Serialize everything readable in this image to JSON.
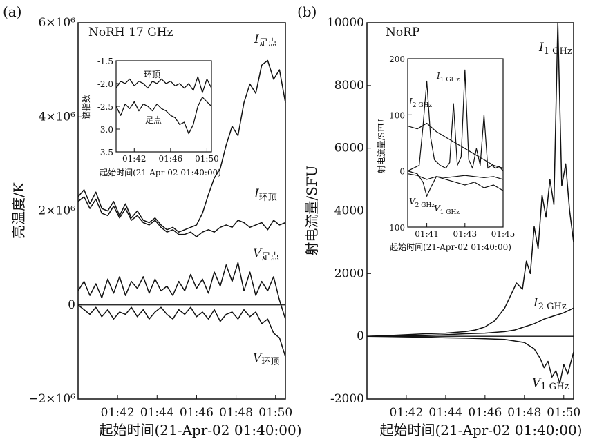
{
  "colors": {
    "line": "#111111",
    "background": "#ffffff"
  },
  "chart_data": [
    {
      "panel": "(a)",
      "type": "line",
      "instrument": "NoRH 17 GHz",
      "xlabel": "起始时间(21-Apr-02 01:40:00)",
      "ylabel": "亮温度/K",
      "xlim": [
        0,
        10.5
      ],
      "ylim": [
        -2000000,
        6000000
      ],
      "x_tick_labels": [
        "01:42",
        "01:44",
        "01:46",
        "01:48",
        "01:50"
      ],
      "y_tick_labels": [
        "6×10⁶",
        "4×10⁶",
        "2×10⁶",
        "0",
        "−2×10⁶"
      ],
      "series": [
        {
          "name": "I足点",
          "label_main": "I",
          "label_sub": "足点",
          "x": [
            0,
            0.3,
            0.6,
            0.9,
            1.2,
            1.5,
            1.8,
            2.1,
            2.4,
            2.7,
            3.0,
            3.3,
            3.6,
            3.9,
            4.2,
            4.5,
            4.8,
            5.1,
            5.4,
            5.7,
            6.0,
            6.3,
            6.6,
            6.9,
            7.2,
            7.5,
            7.8,
            8.1,
            8.4,
            8.7,
            9.0,
            9.3,
            9.6,
            9.9,
            10.2,
            10.5
          ],
          "y": [
            2300000,
            2450000,
            2150000,
            2400000,
            2050000,
            2000000,
            2200000,
            1900000,
            2150000,
            1850000,
            2000000,
            1800000,
            1750000,
            1850000,
            1700000,
            1600000,
            1650000,
            1550000,
            1600000,
            1650000,
            1700000,
            1950000,
            2350000,
            2700000,
            2900000,
            3400000,
            3800000,
            3600000,
            4300000,
            4700000,
            4500000,
            5100000,
            5200000,
            4800000,
            5000000,
            4300000
          ]
        },
        {
          "name": "I环顶",
          "label_main": "I",
          "label_sub": "环顶",
          "x": [
            0,
            0.3,
            0.6,
            0.9,
            1.2,
            1.5,
            1.8,
            2.1,
            2.4,
            2.7,
            3.0,
            3.3,
            3.6,
            3.9,
            4.2,
            4.5,
            4.8,
            5.1,
            5.4,
            5.7,
            6.0,
            6.3,
            6.6,
            6.9,
            7.2,
            7.5,
            7.8,
            8.1,
            8.4,
            8.7,
            9.0,
            9.3,
            9.6,
            9.9,
            10.2,
            10.5
          ],
          "y": [
            2200000,
            2300000,
            2050000,
            2250000,
            1950000,
            1900000,
            2100000,
            1850000,
            2050000,
            1800000,
            1900000,
            1750000,
            1700000,
            1800000,
            1650000,
            1550000,
            1600000,
            1500000,
            1500000,
            1550000,
            1450000,
            1550000,
            1600000,
            1550000,
            1650000,
            1700000,
            1650000,
            1800000,
            1750000,
            1650000,
            1700000,
            1750000,
            1600000,
            1800000,
            1700000,
            1750000
          ]
        },
        {
          "name": "V足点",
          "label_main": "V",
          "label_sub": "足点",
          "x": [
            0,
            0.3,
            0.6,
            0.9,
            1.2,
            1.5,
            1.8,
            2.1,
            2.4,
            2.7,
            3.0,
            3.3,
            3.6,
            3.9,
            4.2,
            4.5,
            4.8,
            5.1,
            5.4,
            5.7,
            6.0,
            6.3,
            6.6,
            6.9,
            7.2,
            7.5,
            7.8,
            8.1,
            8.4,
            8.7,
            9.0,
            9.3,
            9.6,
            9.9,
            10.2,
            10.5
          ],
          "y": [
            300000,
            500000,
            200000,
            450000,
            150000,
            550000,
            250000,
            600000,
            200000,
            500000,
            350000,
            600000,
            250000,
            550000,
            300000,
            400000,
            200000,
            500000,
            300000,
            650000,
            350000,
            550000,
            250000,
            700000,
            400000,
            850000,
            500000,
            900000,
            300000,
            700000,
            200000,
            500000,
            300000,
            600000,
            100000,
            -300000
          ]
        },
        {
          "name": "V环顶",
          "label_main": "V",
          "label_sub": "环顶",
          "x": [
            0,
            0.3,
            0.6,
            0.9,
            1.2,
            1.5,
            1.8,
            2.1,
            2.4,
            2.7,
            3.0,
            3.3,
            3.6,
            3.9,
            4.2,
            4.5,
            4.8,
            5.1,
            5.4,
            5.7,
            6.0,
            6.3,
            6.6,
            6.9,
            7.2,
            7.5,
            7.8,
            8.1,
            8.4,
            8.7,
            9.0,
            9.3,
            9.6,
            9.9,
            10.2,
            10.5
          ],
          "y": [
            0,
            -100000,
            -200000,
            -50000,
            -250000,
            -100000,
            -300000,
            -150000,
            -200000,
            -50000,
            -250000,
            -100000,
            -300000,
            -150000,
            -50000,
            -200000,
            -300000,
            -100000,
            -200000,
            -50000,
            -250000,
            -150000,
            -300000,
            -100000,
            -350000,
            -200000,
            -150000,
            -300000,
            -100000,
            -250000,
            -150000,
            -400000,
            -300000,
            -600000,
            -700000,
            -1100000
          ]
        }
      ],
      "zero_line": true,
      "inset": {
        "xlabel": "起始时间(21-Apr-02 01:40:00)",
        "ylabel": "谱指数",
        "xlim": [
          0,
          10.5
        ],
        "ylim": [
          -3.5,
          -1.5
        ],
        "x_tick_labels": [
          "01:42",
          "01:46",
          "01:50"
        ],
        "y_tick_labels": [
          "-1.5",
          "-2.0",
          "-2.5",
          "-3.0",
          "-3.5"
        ],
        "series": [
          {
            "name": "环顶",
            "x": [
              0,
              0.5,
              1,
              1.5,
              2,
              2.5,
              3,
              3.5,
              4,
              4.5,
              5,
              5.5,
              6,
              6.5,
              7,
              7.5,
              8,
              8.5,
              9,
              9.5,
              10,
              10.5
            ],
            "y": [
              -2.1,
              -1.95,
              -2.0,
              -1.9,
              -2.05,
              -1.95,
              -2.0,
              -2.1,
              -1.95,
              -2.0,
              -1.9,
              -2.0,
              -1.95,
              -2.05,
              -2.0,
              -2.1,
              -2.0,
              -2.15,
              -1.85,
              -2.2,
              -1.9,
              -2.1
            ]
          },
          {
            "name": "足点",
            "x": [
              0,
              0.5,
              1,
              1.5,
              2,
              2.5,
              3,
              3.5,
              4,
              4.5,
              5,
              5.5,
              6,
              6.5,
              7,
              7.5,
              8,
              8.5,
              9,
              9.5,
              10,
              10.5
            ],
            "y": [
              -2.5,
              -2.7,
              -2.45,
              -2.55,
              -2.4,
              -2.6,
              -2.45,
              -2.5,
              -2.6,
              -2.45,
              -2.55,
              -2.6,
              -2.7,
              -2.75,
              -2.9,
              -2.85,
              -3.1,
              -2.9,
              -2.5,
              -2.3,
              -2.4,
              -2.5
            ]
          }
        ]
      }
    },
    {
      "panel": "(b)",
      "type": "line",
      "instrument": "NoRP",
      "xlabel": "起始时间(21-Apr-02 01:40:00)",
      "ylabel": "射电流量/SFU",
      "xlim": [
        0,
        10.5
      ],
      "ylim": [
        -2000,
        10000
      ],
      "x_tick_labels": [
        "01:42",
        "01:44",
        "01:46",
        "01:48",
        "01:50"
      ],
      "y_tick_labels": [
        "10000",
        "8000",
        "6000",
        "4000",
        "2000",
        "0",
        "-2000"
      ],
      "series": [
        {
          "name": "I1 GHz",
          "label_main": "I",
          "label_sub": "1 GHz",
          "x": [
            0,
            1,
            2,
            3,
            4,
            5,
            5.5,
            6,
            6.5,
            7,
            7.3,
            7.6,
            7.9,
            8.1,
            8.3,
            8.5,
            8.7,
            8.9,
            9.1,
            9.3,
            9.5,
            9.7,
            9.9,
            10.1,
            10.3,
            10.5
          ],
          "y": [
            0,
            20,
            50,
            80,
            100,
            150,
            200,
            300,
            500,
            900,
            1300,
            1700,
            1500,
            2400,
            2000,
            3500,
            2800,
            4500,
            3800,
            5000,
            4200,
            10000,
            4800,
            5500,
            4000,
            3000
          ]
        },
        {
          "name": "I2 GHz",
          "label_main": "I",
          "label_sub": "2 GHz",
          "x": [
            0,
            1,
            2,
            3,
            4,
            5,
            6,
            7,
            7.5,
            8,
            8.5,
            9,
            9.5,
            10,
            10.5
          ],
          "y": [
            0,
            10,
            20,
            30,
            50,
            80,
            100,
            150,
            200,
            300,
            400,
            550,
            650,
            750,
            900
          ]
        },
        {
          "name": "V1 GHz",
          "label_main": "V",
          "label_sub": "1 GHz",
          "x": [
            0,
            1,
            2,
            3,
            4,
            5,
            6,
            7,
            7.5,
            8,
            8.5,
            8.8,
            9,
            9.2,
            9.4,
            9.6,
            9.8,
            10,
            10.2,
            10.5
          ],
          "y": [
            0,
            -10,
            -20,
            -30,
            -50,
            -60,
            -80,
            -100,
            -150,
            -200,
            -400,
            -700,
            -1000,
            -800,
            -1300,
            -1100,
            -1500,
            -900,
            -1200,
            -500
          ]
        }
      ],
      "zero_line": true,
      "inset": {
        "xlabel": "起始时间(21-Apr-02 01:40:00)",
        "ylabel": "射电流量/SFU",
        "xlim": [
          0,
          5
        ],
        "ylim": [
          -100,
          200
        ],
        "x_tick_labels": [
          "01:41",
          "01:43",
          "01:45"
        ],
        "y_tick_labels": [
          "200",
          "100",
          "0",
          "-100"
        ],
        "series": [
          {
            "name": "I1 GHz",
            "label_main": "I",
            "label_sub": "1 GHz",
            "x": [
              0,
              0.3,
              0.6,
              0.8,
              1.0,
              1.2,
              1.4,
              1.7,
              2.0,
              2.2,
              2.4,
              2.6,
              2.8,
              3.0,
              3.2,
              3.4,
              3.6,
              3.8,
              4.0,
              4.2,
              4.4,
              4.6,
              4.8,
              5.0
            ],
            "y": [
              0,
              5,
              10,
              80,
              160,
              60,
              20,
              10,
              5,
              15,
              120,
              10,
              25,
              180,
              20,
              5,
              40,
              10,
              100,
              5,
              10,
              5,
              8,
              0
            ]
          },
          {
            "name": "I2 GHz",
            "label_main": "I",
            "label_sub": "2 GHz",
            "x": [
              0,
              0.5,
              1.0,
              1.5,
              2.0,
              2.5,
              3.0,
              3.5,
              4.0,
              4.5,
              5.0
            ],
            "y": [
              80,
              75,
              85,
              70,
              60,
              50,
              40,
              30,
              20,
              10,
              5
            ]
          },
          {
            "name": "V2 GHz",
            "label_main": "V",
            "label_sub": "2 GHz",
            "x": [
              0,
              0.5,
              1.0,
              1.5,
              2.0,
              2.5,
              3.0,
              3.5,
              4.0,
              4.5,
              5.0
            ],
            "y": [
              -5,
              -8,
              -15,
              -10,
              -12,
              -10,
              -8,
              -10,
              -12,
              -10,
              -15
            ]
          },
          {
            "name": "V1 GHz",
            "label_main": "V",
            "label_sub": "1 GHz",
            "x": [
              0,
              0.5,
              0.8,
              1.0,
              1.2,
              1.5,
              2.0,
              2.5,
              3.0,
              3.5,
              4.0,
              4.5,
              5.0
            ],
            "y": [
              0,
              -5,
              -20,
              -45,
              -30,
              -10,
              -15,
              -20,
              -25,
              -20,
              -30,
              -25,
              -35
            ]
          }
        ]
      }
    }
  ]
}
